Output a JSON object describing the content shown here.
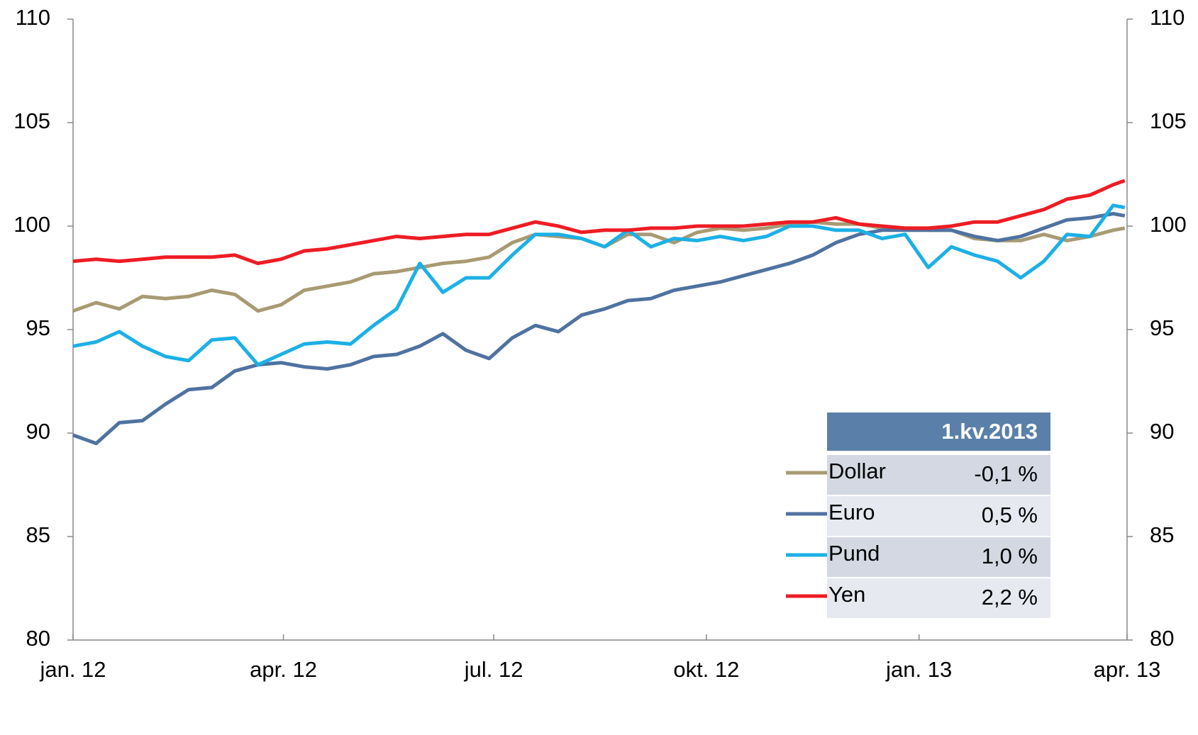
{
  "chart_data": {
    "type": "line",
    "x": [
      0,
      10,
      20,
      30,
      40,
      50,
      60,
      70,
      80,
      90,
      100,
      110,
      120,
      130,
      140,
      150,
      160,
      170,
      180,
      190,
      200,
      210,
      220,
      230,
      240,
      250,
      260,
      270,
      280,
      290,
      300,
      310,
      320,
      330,
      340,
      350,
      360,
      370,
      380,
      390,
      400,
      410,
      420,
      430,
      440,
      450,
      455
    ],
    "xlim": [
      0,
      456
    ],
    "xticks": [
      {
        "value": 0,
        "label": "jan. 12"
      },
      {
        "value": 91,
        "label": "apr. 12"
      },
      {
        "value": 182,
        "label": "jul. 12"
      },
      {
        "value": 274,
        "label": "okt. 12"
      },
      {
        "value": 366,
        "label": "jan. 13"
      },
      {
        "value": 456,
        "label": "apr. 13"
      }
    ],
    "ylim": [
      80,
      110
    ],
    "yticks": [
      80,
      85,
      90,
      95,
      100,
      105,
      110
    ],
    "y2lim": [
      80,
      110
    ],
    "y2ticks": [
      80,
      85,
      90,
      95,
      100,
      105,
      110
    ],
    "legend_title": "1.kv.2013",
    "series": [
      {
        "name": "Dollar",
        "color": "#a89a72",
        "change": "-0,1 %",
        "values": [
          95.9,
          96.3,
          96.0,
          96.6,
          96.5,
          96.6,
          96.9,
          96.7,
          95.9,
          96.2,
          96.9,
          97.1,
          97.3,
          97.7,
          97.8,
          98.0,
          98.2,
          98.3,
          98.5,
          99.2,
          99.6,
          99.5,
          99.4,
          99.0,
          99.6,
          99.6,
          99.2,
          99.7,
          99.9,
          99.8,
          99.9,
          100.1,
          100.2,
          100.1,
          100.1,
          99.9,
          99.9,
          99.8,
          99.8,
          99.4,
          99.3,
          99.3,
          99.6,
          99.3,
          99.5,
          99.8,
          99.9
        ]
      },
      {
        "name": "Euro",
        "color": "#4f72a0",
        "change": "0,5 %",
        "values": [
          89.9,
          89.5,
          90.5,
          90.6,
          91.4,
          92.1,
          92.2,
          93.0,
          93.3,
          93.4,
          93.2,
          93.1,
          93.3,
          93.7,
          93.8,
          94.2,
          94.8,
          94.0,
          93.6,
          94.6,
          95.2,
          94.9,
          95.7,
          96.0,
          96.4,
          96.5,
          96.9,
          97.1,
          97.3,
          97.6,
          97.9,
          98.2,
          98.6,
          99.2,
          99.6,
          99.8,
          99.8,
          99.8,
          99.8,
          99.5,
          99.3,
          99.5,
          99.9,
          100.3,
          100.4,
          100.6,
          100.5
        ]
      },
      {
        "name": "Pund",
        "color": "#1cb0e6",
        "change": "1,0 %",
        "values": [
          94.2,
          94.4,
          94.9,
          94.2,
          93.7,
          93.5,
          94.5,
          94.6,
          93.3,
          93.8,
          94.3,
          94.4,
          94.3,
          95.2,
          96.0,
          98.2,
          96.8,
          97.5,
          97.5,
          98.6,
          99.6,
          99.6,
          99.4,
          99.0,
          99.8,
          99.0,
          99.4,
          99.3,
          99.5,
          99.3,
          99.5,
          100.0,
          100.0,
          99.8,
          99.8,
          99.4,
          99.6,
          98.0,
          99.0,
          98.6,
          98.3,
          97.5,
          98.3,
          99.6,
          99.5,
          101.0,
          100.9
        ]
      },
      {
        "name": "Yen",
        "color": "#ee1c24",
        "change": "2,2 %",
        "values": [
          98.3,
          98.4,
          98.3,
          98.4,
          98.5,
          98.5,
          98.5,
          98.6,
          98.2,
          98.4,
          98.8,
          98.9,
          99.1,
          99.3,
          99.5,
          99.4,
          99.5,
          99.6,
          99.6,
          99.9,
          100.2,
          100.0,
          99.7,
          99.8,
          99.8,
          99.9,
          99.9,
          100.0,
          100.0,
          100.0,
          100.1,
          100.2,
          100.2,
          100.4,
          100.1,
          100.0,
          99.9,
          99.9,
          100.0,
          100.2,
          100.2,
          100.5,
          100.8,
          101.3,
          101.5,
          102.0,
          102.2
        ]
      }
    ]
  }
}
